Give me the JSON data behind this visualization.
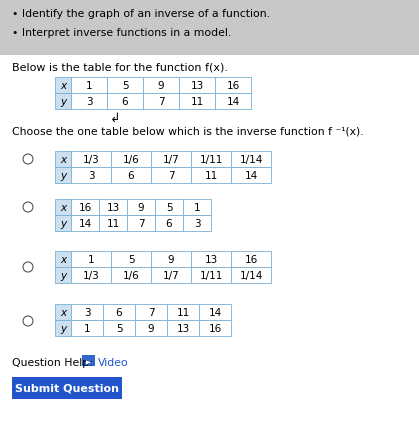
{
  "bg_color": "#c8c8c8",
  "gray_header_color": "#c8c8c8",
  "white_color": "#ffffff",
  "bullet_lines": [
    "Identify the graph of an inverse of a function.",
    "Interpret inverse functions in a model."
  ],
  "intro_text": "Below is the table for the function f(x).",
  "main_table": {
    "x_label": "x",
    "y_label": "y",
    "x_vals": [
      "1",
      "5",
      "9",
      "13",
      "16"
    ],
    "y_vals": [
      "3",
      "6",
      "7",
      "11",
      "14"
    ]
  },
  "choose_text": "Choose the one table below which is the inverse function f",
  "choose_sup": "-1",
  "choose_end": "(x).",
  "options": [
    {
      "x_vals": [
        "1/3",
        "1/6",
        "1/7",
        "1/11",
        "1/14"
      ],
      "y_vals": [
        "3",
        "6",
        "7",
        "11",
        "14"
      ]
    },
    {
      "x_vals": [
        "16",
        "13",
        "9",
        "5",
        "1"
      ],
      "y_vals": [
        "14",
        "11",
        "7",
        "6",
        "3"
      ]
    },
    {
      "x_vals": [
        "1",
        "5",
        "9",
        "13",
        "16"
      ],
      "y_vals": [
        "1/3",
        "1/6",
        "1/7",
        "1/11",
        "1/14"
      ]
    },
    {
      "x_vals": [
        "3",
        "6",
        "7",
        "11",
        "14"
      ],
      "y_vals": [
        "1",
        "5",
        "9",
        "13",
        "16"
      ]
    }
  ],
  "question_help_text": "Question Help:",
  "video_text": "Video",
  "submit_text": "Submit Question",
  "submit_color": "#2255cc",
  "table_border_color": "#7ab0d4",
  "header_bg": "#cce0f0",
  "cell_bg": "#ffffff"
}
